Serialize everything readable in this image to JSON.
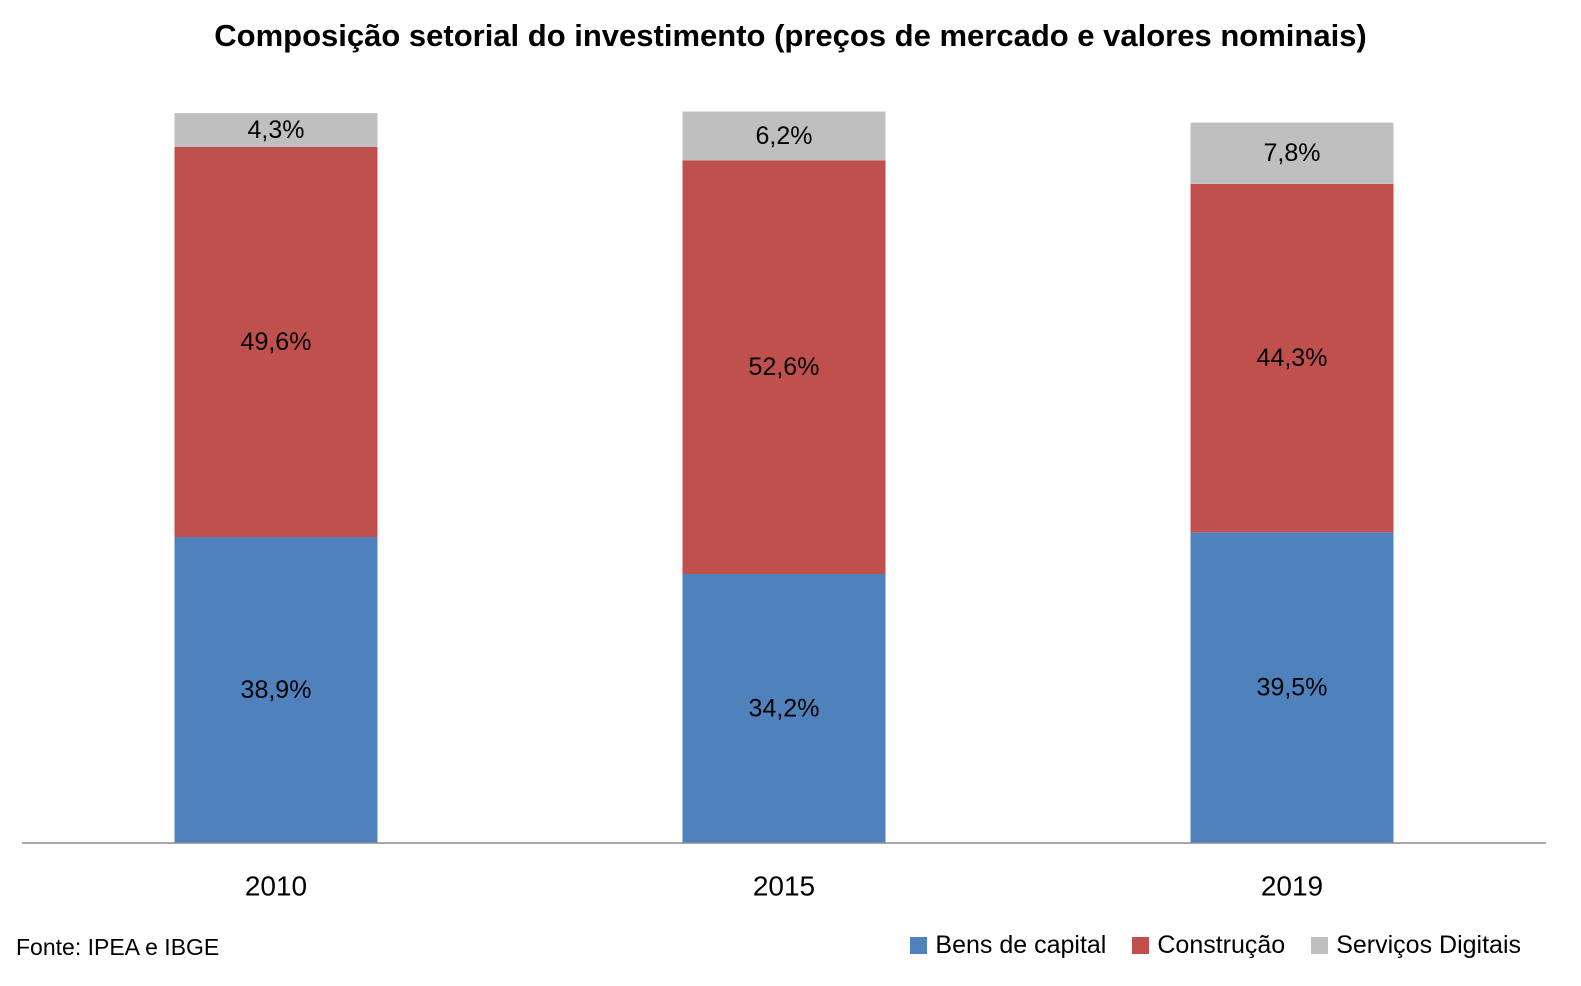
{
  "chart_data": {
    "type": "bar",
    "stacked": true,
    "title": "Composição setorial do investimento (preços de mercado e valores nominais)",
    "categories": [
      "2010",
      "2015",
      "2019"
    ],
    "series": [
      {
        "name": "Bens de capital",
        "color": "#4F81BD",
        "values": [
          38.9,
          34.2,
          39.5
        ],
        "labels": [
          "38,9%",
          "34,2%",
          "39,5%"
        ]
      },
      {
        "name": "Construção",
        "color": "#C0504D",
        "values": [
          49.6,
          52.6,
          44.3
        ],
        "labels": [
          "49,6%",
          "52,6%",
          "44,3%"
        ]
      },
      {
        "name": "Serviços Digitais",
        "color": "#BFBFBF",
        "values": [
          4.3,
          6.2,
          7.8
        ],
        "labels": [
          "4,3%",
          "6,2%",
          "7,8%"
        ]
      }
    ],
    "ylim": [
      0,
      100
    ],
    "grid": false,
    "legend": "bottom-right",
    "source": "Fonte: IPEA e IBGE"
  }
}
